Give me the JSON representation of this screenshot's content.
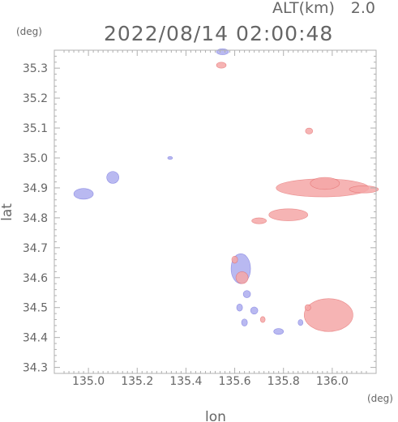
{
  "chart_data": {
    "type": "heatmap",
    "header": {
      "altitude_label": "ALT(km)",
      "altitude_value": "2.0",
      "timestamp": "2022/08/14 02:00:48"
    },
    "xlabel": "lon",
    "ylabel": "lat",
    "x_unit": "(deg)",
    "y_unit": "(deg)",
    "xlim": [
      134.86,
      136.18
    ],
    "ylim": [
      34.28,
      35.36
    ],
    "x_ticks": [
      135.0,
      135.2,
      135.4,
      135.6,
      135.8,
      136.0
    ],
    "y_ticks": [
      34.3,
      34.4,
      34.5,
      34.6,
      34.7,
      34.8,
      34.9,
      35.0,
      35.1,
      35.2,
      35.3
    ],
    "x_tick_labels": [
      "135.0",
      "135.2",
      "135.4",
      "135.6",
      "135.8",
      "136.0"
    ],
    "y_tick_labels": [
      "34.3",
      "34.4",
      "34.5",
      "34.6",
      "34.7",
      "34.8",
      "34.9",
      "35.0",
      "35.1",
      "35.2",
      "35.3"
    ],
    "colors": {
      "positive": "#f4a7a7",
      "positive_light": "#fbd6d6",
      "positive_strong": "#e05a5a",
      "negative": "#a8a8ee",
      "negative_light": "#d4d4f7",
      "negative_strong": "#6060d8",
      "frame": "#b0b0b0",
      "text": "#666666"
    },
    "echo_regions": [
      {
        "lon": 134.98,
        "lat": 34.88,
        "rlon": 0.04,
        "rlat": 0.018,
        "polarity": "negative"
      },
      {
        "lon": 135.1,
        "lat": 34.935,
        "rlon": 0.025,
        "rlat": 0.02,
        "polarity": "negative"
      },
      {
        "lon": 135.335,
        "lat": 35.0,
        "rlon": 0.01,
        "rlat": 0.005,
        "polarity": "negative"
      },
      {
        "lon": 135.55,
        "lat": 35.355,
        "rlon": 0.025,
        "rlat": 0.01,
        "polarity": "negative"
      },
      {
        "lon": 135.545,
        "lat": 35.31,
        "rlon": 0.02,
        "rlat": 0.01,
        "polarity": "positive"
      },
      {
        "lon": 135.905,
        "lat": 35.09,
        "rlon": 0.015,
        "rlat": 0.01,
        "polarity": "positive"
      },
      {
        "lon": 135.96,
        "lat": 34.9,
        "rlon": 0.19,
        "rlat": 0.03,
        "polarity": "positive"
      },
      {
        "lon": 135.97,
        "lat": 34.915,
        "rlon": 0.06,
        "rlat": 0.02,
        "polarity": "positive"
      },
      {
        "lon": 136.13,
        "lat": 34.895,
        "rlon": 0.06,
        "rlat": 0.012,
        "polarity": "positive"
      },
      {
        "lon": 135.82,
        "lat": 34.81,
        "rlon": 0.08,
        "rlat": 0.02,
        "polarity": "positive"
      },
      {
        "lon": 135.7,
        "lat": 34.79,
        "rlon": 0.03,
        "rlat": 0.01,
        "polarity": "positive"
      },
      {
        "lon": 135.625,
        "lat": 34.63,
        "rlon": 0.04,
        "rlat": 0.05,
        "polarity": "negative"
      },
      {
        "lon": 135.63,
        "lat": 34.6,
        "rlon": 0.025,
        "rlat": 0.02,
        "polarity": "positive"
      },
      {
        "lon": 135.6,
        "lat": 34.66,
        "rlon": 0.012,
        "rlat": 0.012,
        "polarity": "positive"
      },
      {
        "lon": 135.65,
        "lat": 34.545,
        "rlon": 0.015,
        "rlat": 0.012,
        "polarity": "negative"
      },
      {
        "lon": 135.62,
        "lat": 34.5,
        "rlon": 0.012,
        "rlat": 0.012,
        "polarity": "negative"
      },
      {
        "lon": 135.68,
        "lat": 34.49,
        "rlon": 0.015,
        "rlat": 0.012,
        "polarity": "negative"
      },
      {
        "lon": 135.64,
        "lat": 34.45,
        "rlon": 0.012,
        "rlat": 0.012,
        "polarity": "negative"
      },
      {
        "lon": 135.715,
        "lat": 34.46,
        "rlon": 0.01,
        "rlat": 0.01,
        "polarity": "positive"
      },
      {
        "lon": 135.78,
        "lat": 34.42,
        "rlon": 0.02,
        "rlat": 0.01,
        "polarity": "negative"
      },
      {
        "lon": 135.985,
        "lat": 34.475,
        "rlon": 0.1,
        "rlat": 0.055,
        "polarity": "positive"
      },
      {
        "lon": 135.87,
        "lat": 34.45,
        "rlon": 0.01,
        "rlat": 0.01,
        "polarity": "negative"
      },
      {
        "lon": 135.9,
        "lat": 34.5,
        "rlon": 0.012,
        "rlat": 0.01,
        "polarity": "positive"
      }
    ]
  }
}
